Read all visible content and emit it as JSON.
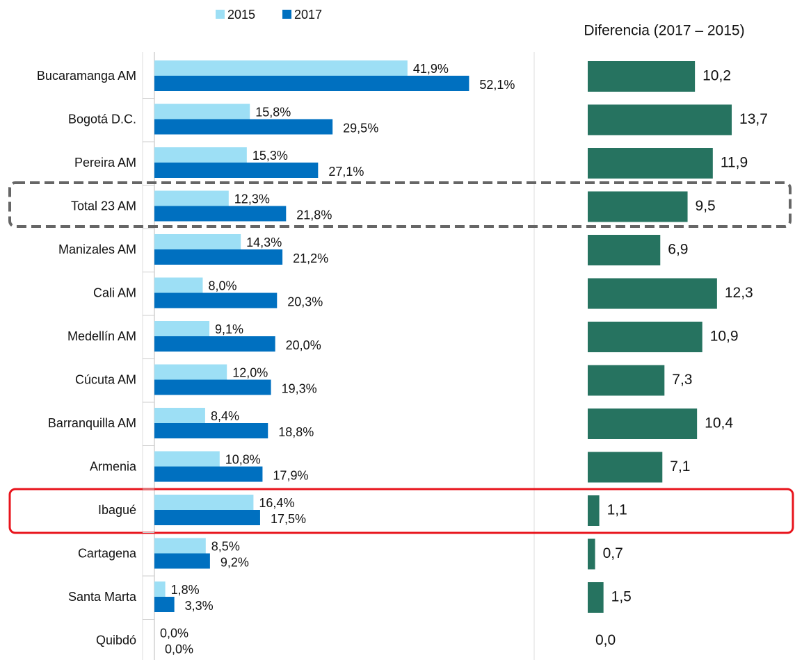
{
  "chart_data": [
    {
      "type": "bar",
      "orientation": "horizontal",
      "categories": [
        "Bucaramanga AM",
        "Bogotá D.C.",
        "Pereira AM",
        "Total 23 AM",
        "Manizales AM",
        "Cali AM",
        "Medellín AM",
        "Cúcuta AM",
        "Barranquilla AM",
        "Armenia",
        "Ibagué",
        "Cartagena",
        "Santa Marta",
        "Quibdó"
      ],
      "series": [
        {
          "name": "2015",
          "color": "#9ddff5",
          "values": [
            41.9,
            15.8,
            15.3,
            12.3,
            14.3,
            8.0,
            9.1,
            12.0,
            8.4,
            10.8,
            16.4,
            8.5,
            1.8,
            0
          ],
          "value_labels": [
            "41,9%",
            "15,8%",
            "15,3%",
            "12,3%",
            "14,3%",
            "8,0%",
            "9,1%",
            "12,0%",
            "8,4%",
            "10,8%",
            "16,4%",
            "8,5%",
            "1,8%",
            "0,0%"
          ]
        },
        {
          "name": "2017",
          "color": "#0070c0",
          "values": [
            52.1,
            29.5,
            27.1,
            21.8,
            21.2,
            20.3,
            20.0,
            19.3,
            18.8,
            17.9,
            17.5,
            9.2,
            3.3,
            0
          ],
          "value_labels": [
            "52,1%",
            "29,5%",
            "27,1%",
            "21,8%",
            "21,2%",
            "20,3%",
            "20,0%",
            "19,3%",
            "18,8%",
            "17,9%",
            "17,5%",
            "9,2%",
            "3,3%",
            "0,0%"
          ]
        }
      ],
      "xlim": [
        0,
        60
      ],
      "legend": "top"
    },
    {
      "type": "bar",
      "orientation": "horizontal",
      "title": "Diferencia (2017 – 2015)",
      "color": "#267360",
      "values": [
        10.2,
        13.7,
        11.9,
        9.5,
        6.9,
        12.3,
        10.9,
        7.3,
        10.4,
        7.1,
        1.1,
        0.7,
        1.5,
        0.0
      ],
      "value_labels": [
        "10,2",
        "13,7",
        "11,9",
        "9,5",
        "6,9",
        "12,3",
        "10,9",
        "7,3",
        "10,4",
        "7,1",
        "1,1",
        "0,7",
        "1,5",
        "0,0"
      ],
      "xlim": [
        0,
        18
      ]
    }
  ]
}
